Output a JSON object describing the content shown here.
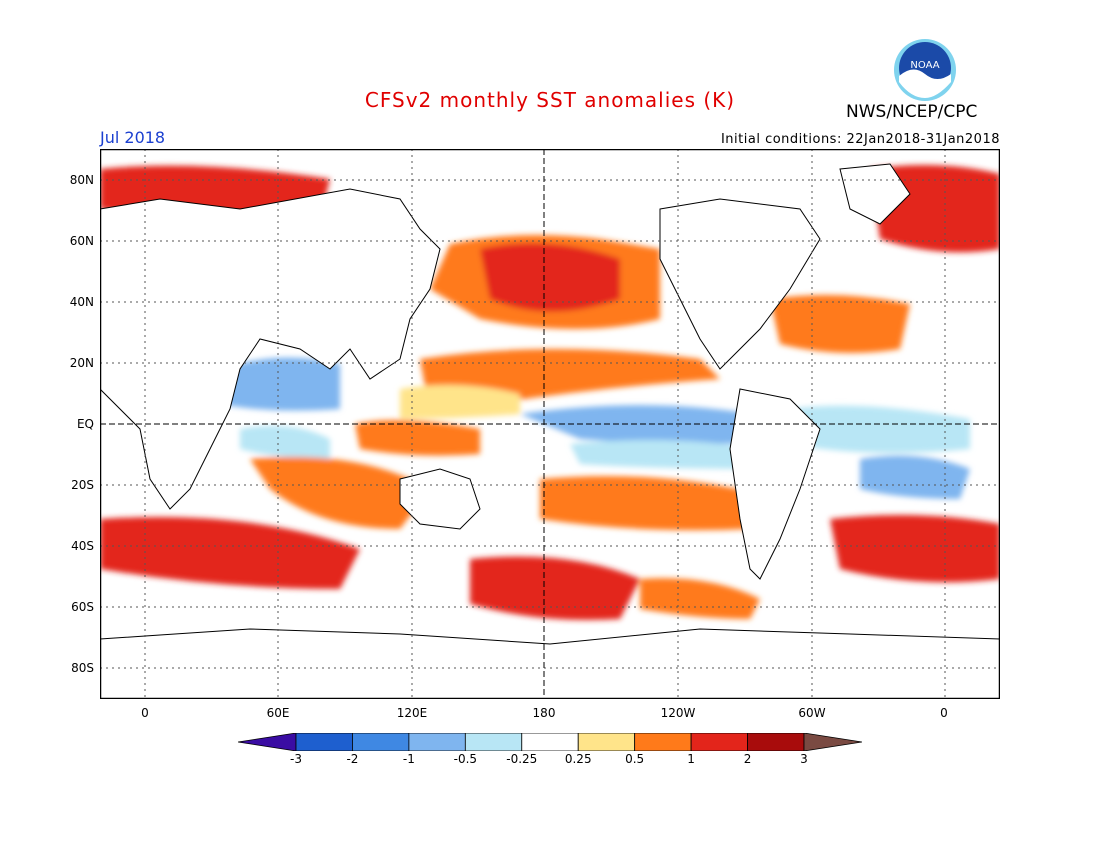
{
  "title": "CFSv2 monthly SST anomalies (K)",
  "agency": "NWS/NCEP/CPC",
  "logo_text": "NOAA",
  "valid_month": "Jul 2018",
  "initial_conditions": "Initial conditions: 22Jan2018-31Jan2018",
  "lat_labels": [
    "80N",
    "60N",
    "40N",
    "20N",
    "EQ",
    "20S",
    "40S",
    "60S",
    "80S"
  ],
  "lon_labels": [
    "0",
    "60E",
    "120E",
    "180",
    "120W",
    "60W",
    "0"
  ],
  "colorbar": {
    "ticks": [
      "-3",
      "-2",
      "-1",
      "-0.5",
      "-0.25",
      "0.25",
      "0.5",
      "1",
      "2",
      "3"
    ],
    "colors": [
      "#3a0ca3",
      "#1e5fcf",
      "#3f88e3",
      "#7fb5ef",
      "#b8e6f5",
      "#ffffff",
      "#ffe48a",
      "#ff7a1a",
      "#e3251b",
      "#a80c0c",
      "#7a4a42"
    ]
  }
}
